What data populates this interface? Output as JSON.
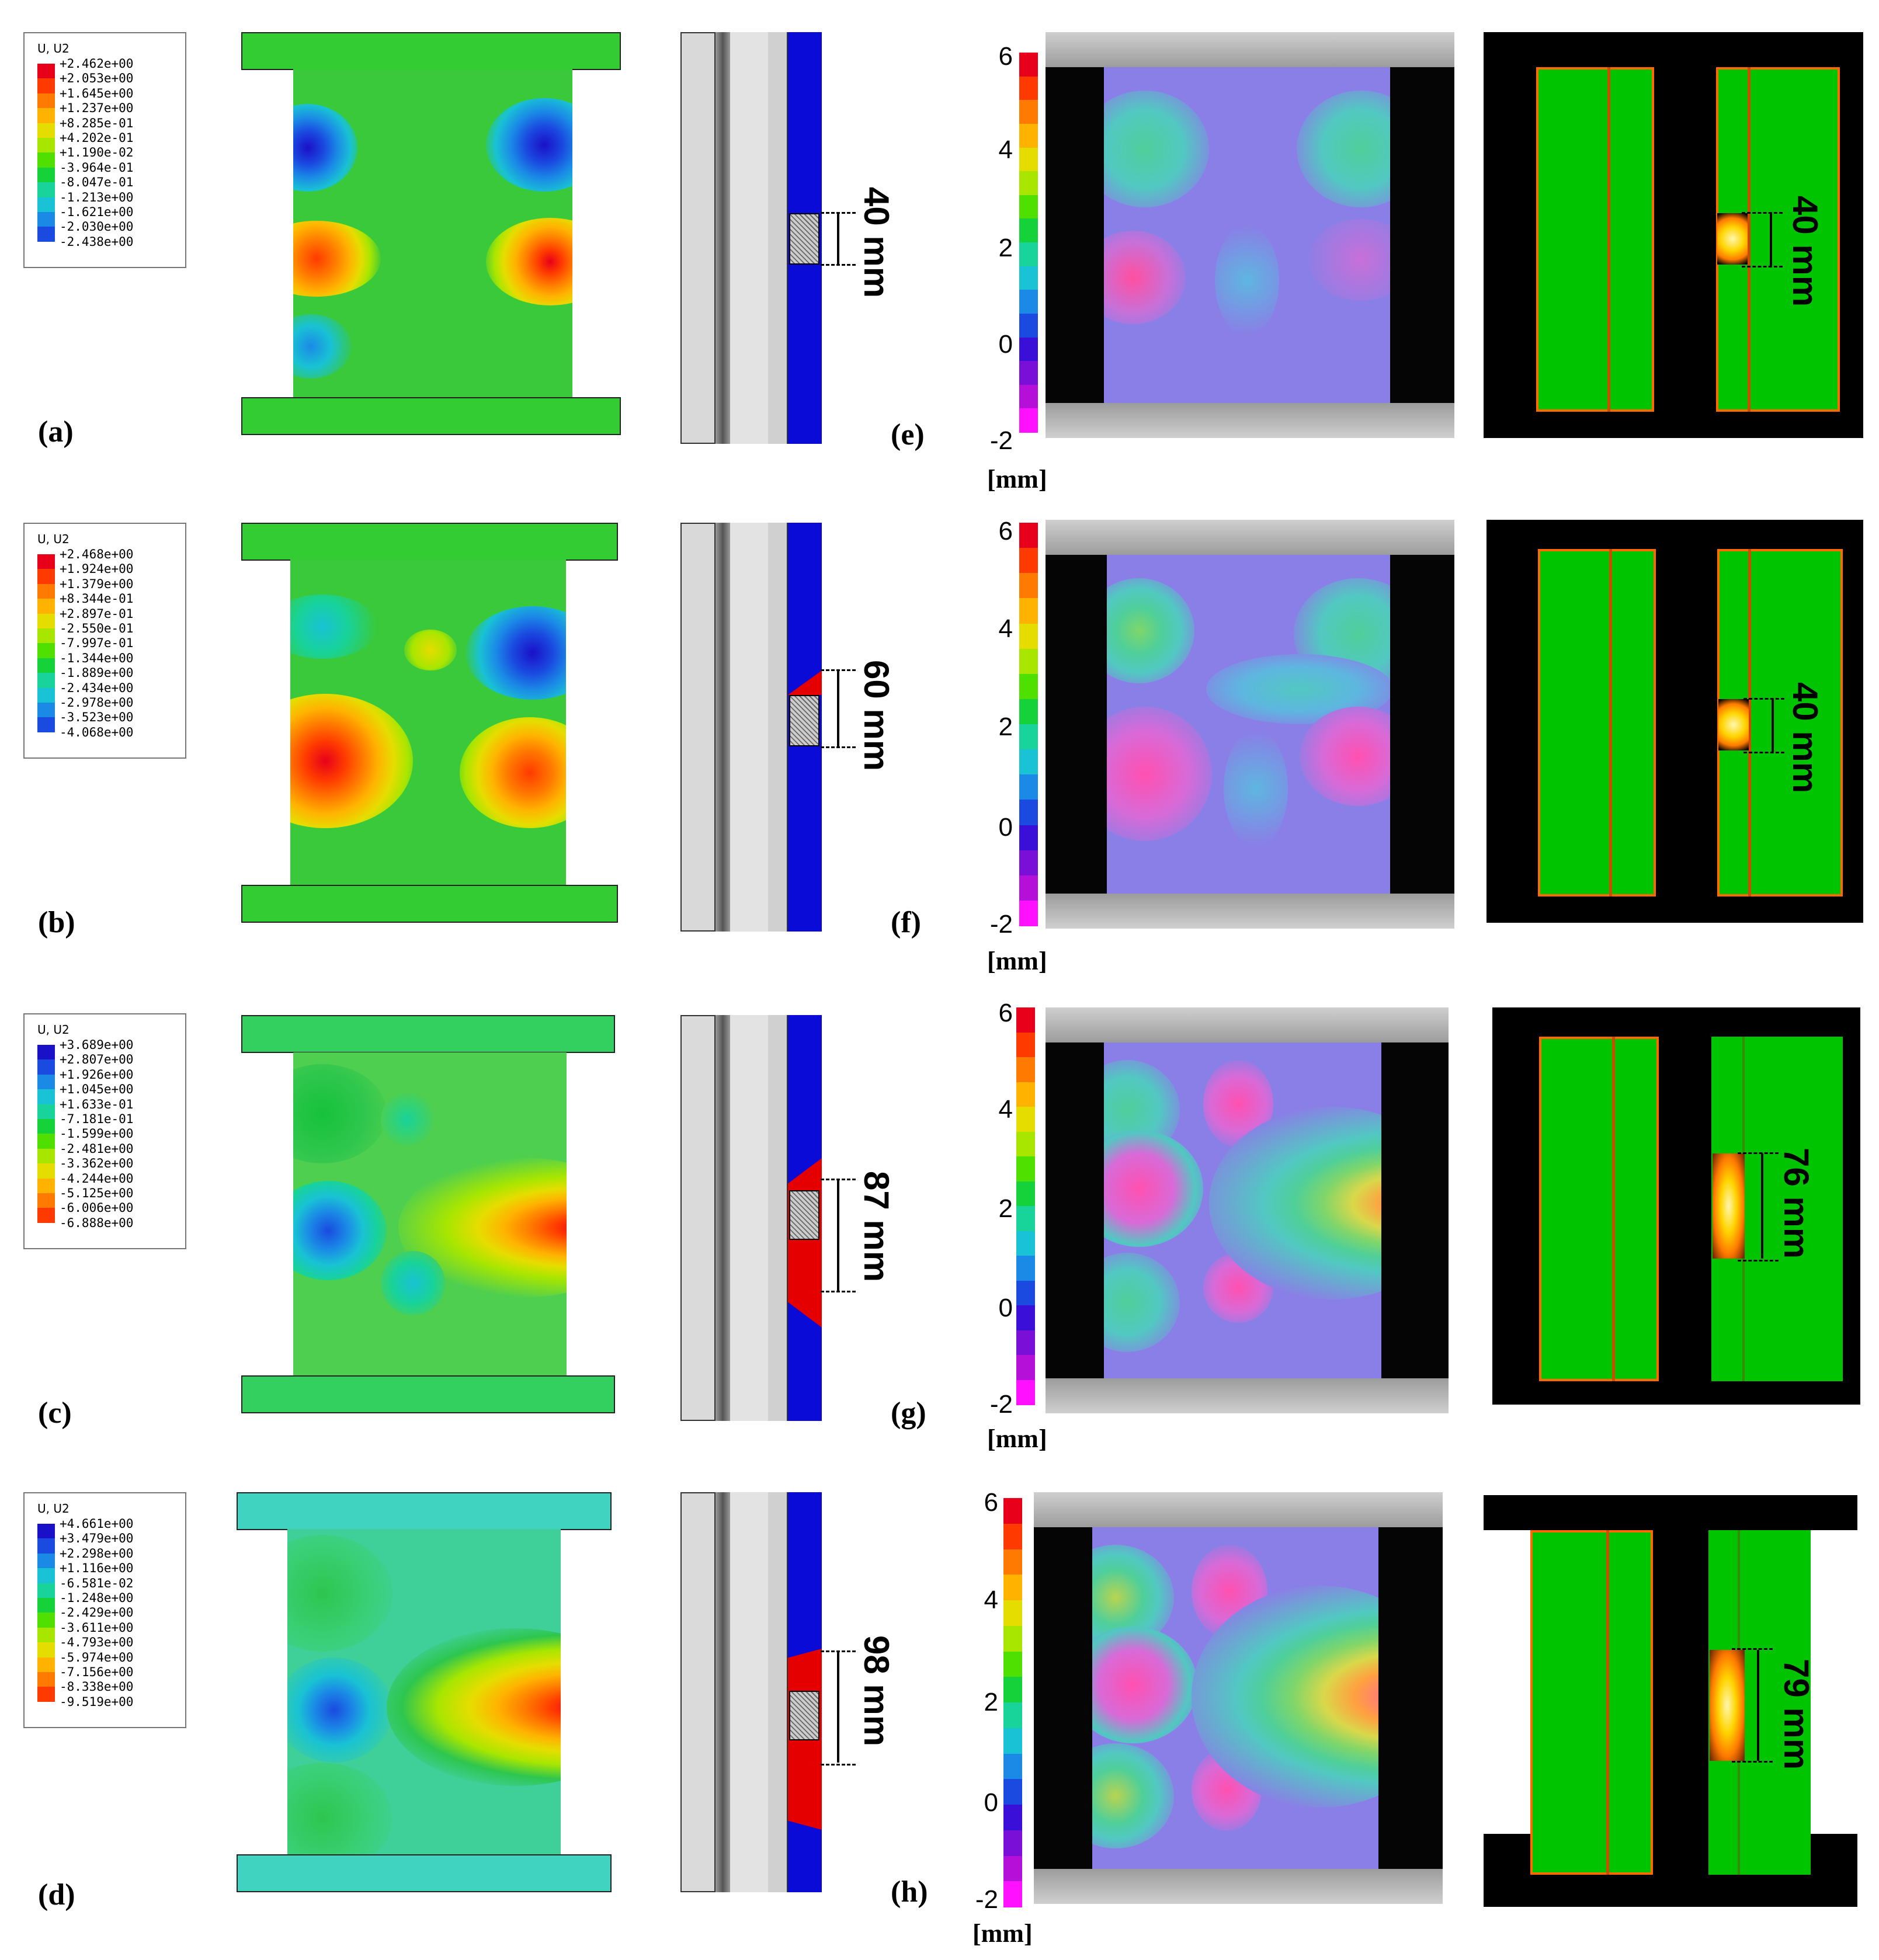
{
  "panel_labels": [
    "(a)",
    "(b)",
    "(c)",
    "(d)",
    "(e)",
    "(f)",
    "(g)",
    "(h)"
  ],
  "legends": [
    {
      "title": "U, U2",
      "values": [
        "+2.462e+00",
        "+2.053e+00",
        "+1.645e+00",
        "+1.237e+00",
        "+8.285e-01",
        "+4.202e-01",
        "+1.190e-02",
        "-3.964e-01",
        "-8.047e-01",
        "-1.213e+00",
        "-1.621e+00",
        "-2.030e+00",
        "-2.438e+00"
      ]
    },
    {
      "title": "U, U2",
      "values": [
        "+2.468e+00",
        "+1.924e+00",
        "+1.379e+00",
        "+8.344e-01",
        "+2.897e-01",
        "-2.550e-01",
        "-7.997e-01",
        "-1.344e+00",
        "-1.889e+00",
        "-2.434e+00",
        "-2.978e+00",
        "-3.523e+00",
        "-4.068e+00"
      ]
    },
    {
      "title": "U, U2",
      "values": [
        "+3.689e+00",
        "+2.807e+00",
        "+1.926e+00",
        "+1.045e+00",
        "+1.633e-01",
        "-7.181e-01",
        "-1.599e+00",
        "-2.481e+00",
        "-3.362e+00",
        "-4.244e+00",
        "-5.125e+00",
        "-6.006e+00",
        "-6.888e+00"
      ]
    },
    {
      "title": "U, U2",
      "values": [
        "+4.661e+00",
        "+3.479e+00",
        "+2.298e+00",
        "+1.116e+00",
        "-6.581e-02",
        "-1.248e+00",
        "-2.429e+00",
        "-3.611e+00",
        "-4.793e+00",
        "-5.974e+00",
        "-7.156e+00",
        "-8.338e+00",
        "-9.519e+00"
      ]
    }
  ],
  "legend_colors_warm_top": [
    "#e8001a",
    "#ff3a00",
    "#ff7a00",
    "#ffb300",
    "#e6dd00",
    "#a8e600",
    "#4fe000",
    "#16d23a",
    "#18d39a",
    "#19c2d4",
    "#1a8ae6",
    "#1a4ae0",
    "#1a10c8"
  ],
  "legend_colors_cool_top": [
    "#1a10c8",
    "#1a4ae0",
    "#1a8ae6",
    "#19c2d4",
    "#18d39a",
    "#16d23a",
    "#4fe000",
    "#a8e600",
    "#e6dd00",
    "#ffb300",
    "#ff7a00",
    "#ff3a00",
    "#e8001a"
  ],
  "cross_sections": [
    {
      "dimension": "40 mm"
    },
    {
      "dimension": "60 mm"
    },
    {
      "dimension": "87 mm"
    },
    {
      "dimension": "98 mm"
    }
  ],
  "dic_colorbar": {
    "ticks": [
      "6",
      "4",
      "2",
      "0",
      "-2"
    ],
    "unit": "[mm]"
  },
  "ir_dimensions": [
    "40 mm",
    "40 mm",
    "76 mm",
    "79 mm"
  ]
}
